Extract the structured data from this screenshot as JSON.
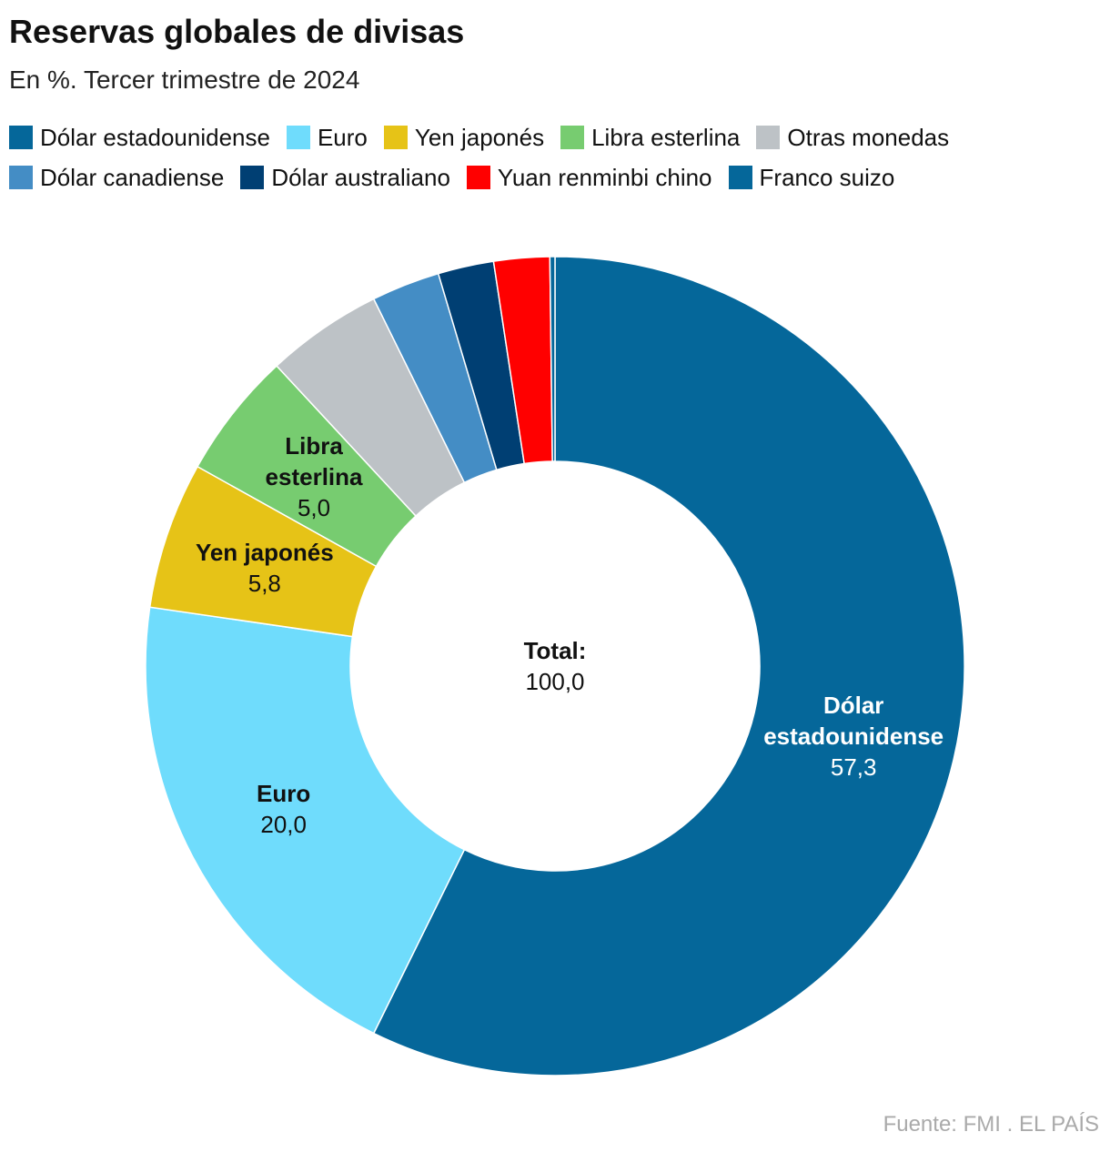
{
  "chart_data": {
    "type": "donut",
    "title": "Reservas globales de divisas",
    "subtitle": "En %. Tercer trimestre de 2024",
    "categories": [
      "Dólar estadounidense",
      "Euro",
      "Yen japonés",
      "Libra esterlina",
      "Otras monedas",
      "Dólar canadiense",
      "Dólar australiano",
      "Yuan renminbi chino",
      "Franco suizo"
    ],
    "values": [
      57.3,
      20.0,
      5.8,
      5.0,
      4.6,
      2.7,
      2.2,
      2.2,
      0.2
    ],
    "value_labels": [
      "57,3",
      "20,0",
      "5,8",
      "5,0",
      null,
      null,
      null,
      null,
      null
    ],
    "colors": [
      "#05679a",
      "#6fdcfc",
      "#e6c317",
      "#77cc70",
      "#bdc2c6",
      "#448dc5",
      "#003f73",
      "#ff0000",
      "#05679a"
    ],
    "center_title": "Total:",
    "total": {
      "value": 100,
      "label": "100,0"
    },
    "source": "Fuente: FMI . EL PAÍS"
  }
}
